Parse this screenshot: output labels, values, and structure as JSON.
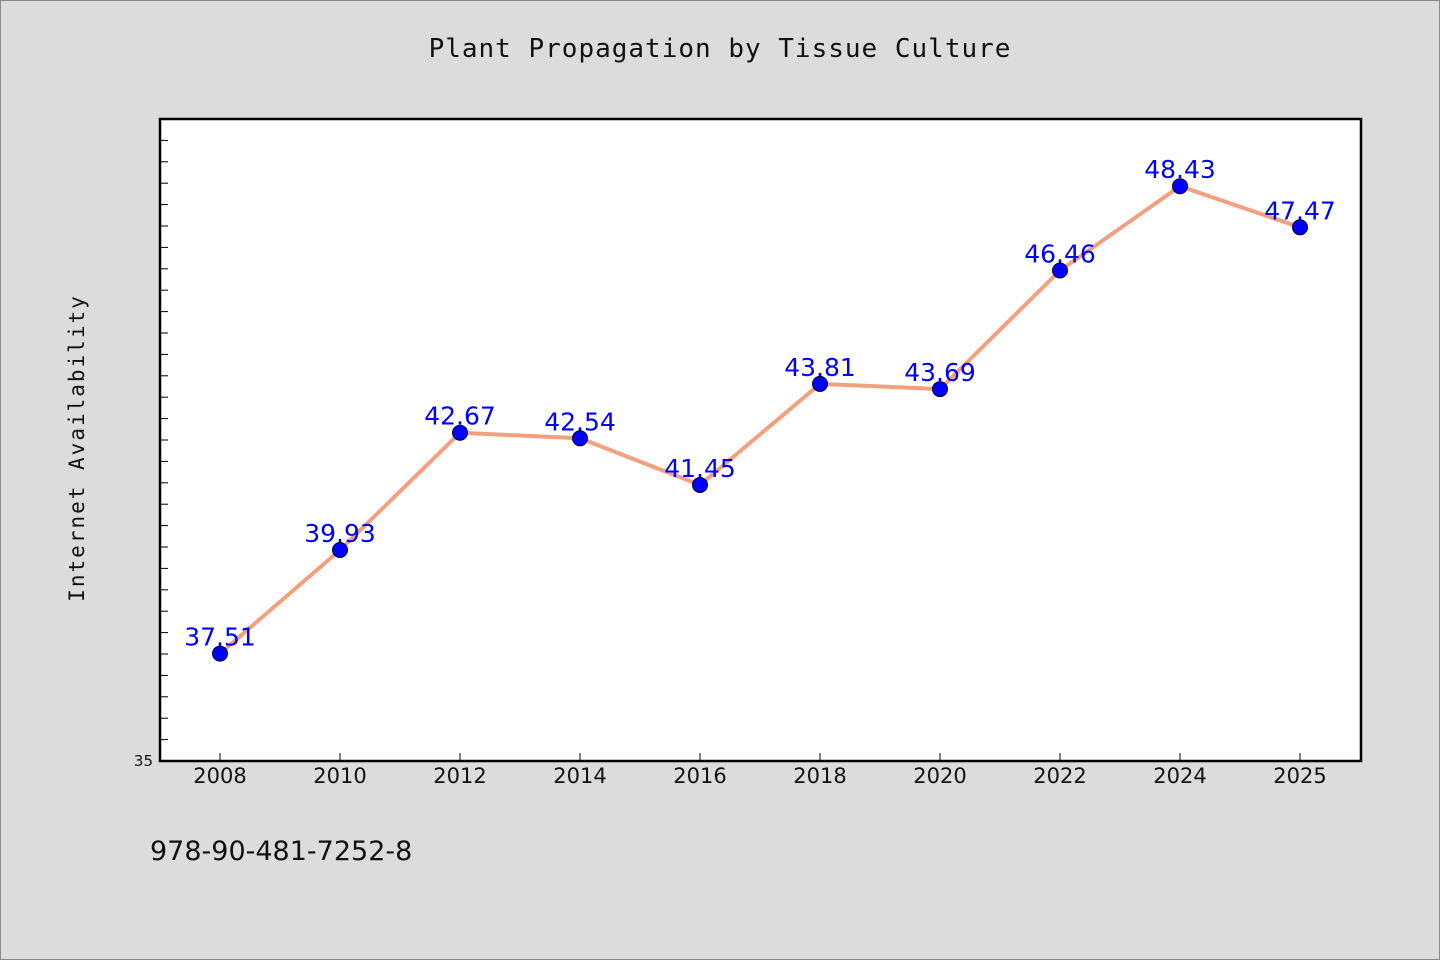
{
  "chart_data": {
    "type": "line",
    "title": "Plant Propagation by Tissue Culture",
    "xlabel": "",
    "ylabel": "Internet Availability",
    "categories": [
      "2008",
      "2010",
      "2012",
      "2014",
      "2016",
      "2018",
      "2020",
      "2022",
      "2024",
      "2025"
    ],
    "series": [
      {
        "values": [
          37.51,
          39.93,
          42.67,
          42.54,
          41.45,
          43.81,
          43.69,
          46.46,
          48.43,
          47.47
        ],
        "labels": [
          "37.51",
          "39.93",
          "42.67",
          "42.54",
          "41.45",
          "43.81",
          "43.69",
          "46.46",
          "48.43",
          "47.47"
        ],
        "line_color": "#f4a07e",
        "marker_color": "#0000ff",
        "label_color": "#0000ff"
      }
    ],
    "ylim": [
      35,
      50
    ],
    "y_tick_label": "35",
    "grid": false,
    "legend": "none"
  },
  "footer": {
    "code": "978-90-481-7252-8"
  },
  "colors": {
    "background": "#dcdcdc",
    "plot_background": "#ffffff",
    "axis": "#000000"
  }
}
